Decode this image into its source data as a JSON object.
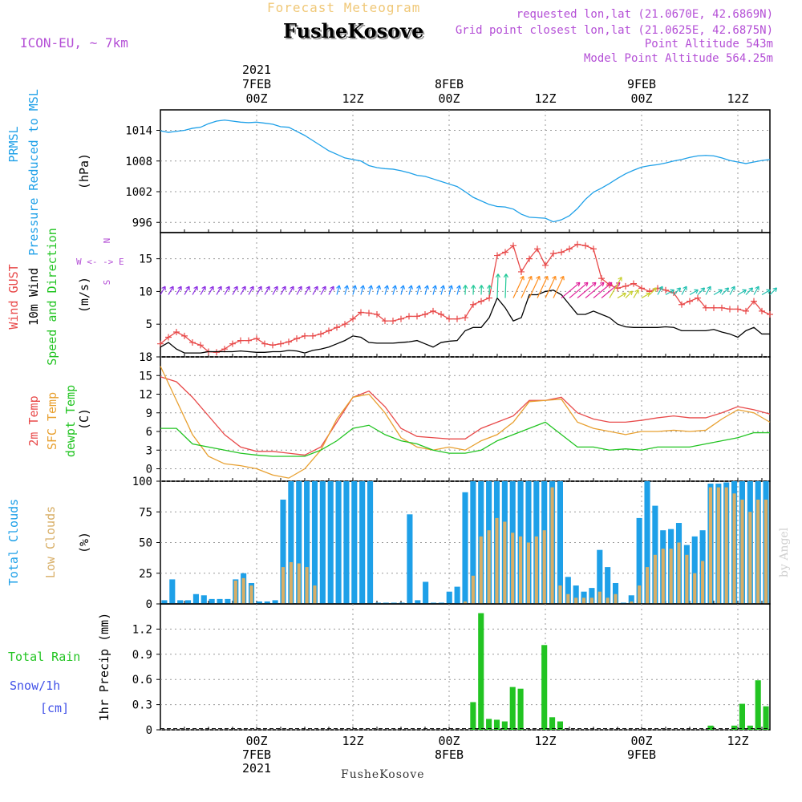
{
  "header": {
    "title": "Forecast Meteogram",
    "location": "FusheKosove",
    "model": "ICON-EU, ~ 7km",
    "requested": "requested lon,lat (21.0670E, 42.6869N)",
    "closest": "Grid point closest lon,lat (21.0625E, 42.6875N)",
    "point_alt": "Point Altitude 543m",
    "model_alt": "Model Point Altitude 564.25m",
    "credit": "by Angel",
    "footer": "FusheKosove"
  },
  "colors": {
    "pressure": "#1ea0e8",
    "gust": "#e84a4a",
    "wind": "#000000",
    "t2m": "#e84a4a",
    "sfc": "#e8a030",
    "dew": "#22c422",
    "total_cloud": "#1ea0e8",
    "low_cloud": "#d8ae66",
    "rain": "#22c422",
    "snow": "#4050e8"
  },
  "time_axis": {
    "top_labels": [
      {
        "t": 12,
        "lines": [
          "2021",
          "7FEB",
          "00Z"
        ]
      },
      {
        "t": 24,
        "lines": [
          "12Z"
        ]
      },
      {
        "t": 36,
        "lines": [
          "8FEB",
          "00Z"
        ]
      },
      {
        "t": 48,
        "lines": [
          "12Z"
        ]
      },
      {
        "t": 60,
        "lines": [
          "9FEB",
          "00Z"
        ]
      },
      {
        "t": 72,
        "lines": [
          "12Z"
        ]
      }
    ],
    "bottom_labels": [
      {
        "t": 12,
        "lines": [
          "00Z",
          "7FEB",
          "2021"
        ]
      },
      {
        "t": 24,
        "lines": [
          "12Z"
        ]
      },
      {
        "t": 36,
        "lines": [
          "00Z",
          "8FEB"
        ]
      },
      {
        "t": 48,
        "lines": [
          "12Z"
        ]
      },
      {
        "t": 60,
        "lines": [
          "00Z",
          "9FEB"
        ]
      },
      {
        "t": 72,
        "lines": [
          "12Z"
        ]
      }
    ]
  },
  "chart_data": [
    {
      "type": "line",
      "ylim": [
        994,
        1018
      ],
      "yticks": [
        "996",
        "1002",
        "1008",
        "1014"
      ],
      "unit": "(hPa)",
      "label_lines": [
        "PRMSL",
        "Pressure Reduced to MSL"
      ],
      "series": [
        {
          "name": "PRMSL",
          "x": [
            0,
            1,
            2,
            3,
            4,
            5,
            6,
            7,
            8,
            9,
            10,
            11,
            12,
            13,
            14,
            15,
            16,
            17,
            18,
            19,
            20,
            21,
            22,
            23,
            24,
            25,
            26,
            27,
            28,
            29,
            30,
            31,
            32,
            33,
            34,
            35,
            36,
            37,
            38,
            39,
            40,
            41,
            42,
            43,
            44,
            45,
            46,
            47,
            48,
            49,
            50,
            51,
            52,
            53,
            54,
            55,
            56,
            57,
            58,
            59,
            60,
            61,
            62,
            63,
            64,
            65,
            66,
            67,
            68,
            69,
            70,
            71,
            72,
            73,
            74,
            75,
            76
          ],
          "values": [
            1013.9,
            1013.6,
            1013.8,
            1014.0,
            1014.4,
            1014.6,
            1015.3,
            1015.8,
            1016.0,
            1015.8,
            1015.6,
            1015.5,
            1015.6,
            1015.4,
            1015.2,
            1014.7,
            1014.6,
            1013.8,
            1013.0,
            1012.0,
            1011.0,
            1010.0,
            1009.3,
            1008.6,
            1008.3,
            1008.0,
            1007.1,
            1006.7,
            1006.5,
            1006.4,
            1006.1,
            1005.7,
            1005.2,
            1005.0,
            1004.5,
            1004.0,
            1003.5,
            1003.0,
            1002.0,
            1000.9,
            1000.2,
            999.5,
            999.1,
            999.0,
            998.6,
            997.6,
            997.0,
            996.9,
            996.8,
            996.1,
            996.5,
            997.3,
            998.7,
            1000.5,
            1001.9,
            1002.7,
            1003.6,
            1004.6,
            1005.5,
            1006.2,
            1006.8,
            1007.1,
            1007.3,
            1007.6,
            1008.0,
            1008.3,
            1008.7,
            1009.0,
            1009.1,
            1009.0,
            1008.6,
            1008.1,
            1007.8,
            1007.5,
            1007.8,
            1008.1,
            1008.3
          ]
        }
      ]
    },
    {
      "type": "line",
      "ylim": [
        0,
        19
      ],
      "yticks": [
        "5",
        "10",
        "15"
      ],
      "unit": "(m/s)",
      "label_lines": [
        "Wind GUST",
        "10m Wind",
        "Speed and Direction"
      ],
      "compass": [
        "N",
        "W <- -> E",
        "S"
      ],
      "series": [
        {
          "name": "Wind GUST",
          "marker": "+",
          "x": [
            0,
            1,
            2,
            3,
            4,
            5,
            6,
            7,
            8,
            9,
            10,
            11,
            12,
            13,
            14,
            15,
            16,
            17,
            18,
            19,
            20,
            21,
            22,
            23,
            24,
            25,
            26,
            27,
            28,
            29,
            30,
            31,
            32,
            33,
            34,
            35,
            36,
            37,
            38,
            39,
            40,
            41,
            42,
            43,
            44,
            45,
            46,
            47,
            48,
            49,
            50,
            51,
            52,
            53,
            54,
            55,
            56,
            57,
            58,
            59,
            60,
            61,
            62,
            63,
            64,
            65,
            66,
            67,
            68,
            69,
            70,
            71,
            72,
            73,
            74,
            75,
            76
          ],
          "values": [
            2.0,
            3.0,
            3.8,
            3.2,
            2.2,
            1.8,
            0.8,
            0.7,
            1.2,
            2.0,
            2.5,
            2.5,
            2.8,
            2.0,
            1.8,
            2.0,
            2.3,
            2.8,
            3.2,
            3.2,
            3.5,
            4.0,
            4.5,
            5.0,
            5.8,
            6.8,
            6.7,
            6.5,
            5.5,
            5.5,
            5.8,
            6.2,
            6.2,
            6.5,
            7.0,
            6.5,
            5.8,
            5.8,
            6.0,
            8.0,
            8.5,
            9.0,
            15.5,
            16.0,
            17.0,
            13.0,
            15.0,
            16.5,
            14.0,
            15.8,
            16.0,
            16.5,
            17.2,
            17.0,
            16.5,
            12.0,
            11.0,
            10.5,
            10.8,
            11.2,
            10.5,
            10.0,
            10.5,
            10.2,
            9.8,
            8.0,
            8.5,
            9.0,
            7.5,
            7.5,
            7.5,
            7.3,
            7.3,
            7.0,
            8.5,
            7.0,
            6.5
          ]
        },
        {
          "name": "10m Wind",
          "x": [
            0,
            1,
            2,
            3,
            4,
            5,
            6,
            7,
            8,
            9,
            10,
            11,
            12,
            13,
            14,
            15,
            16,
            17,
            18,
            19,
            20,
            21,
            22,
            23,
            24,
            25,
            26,
            27,
            28,
            29,
            30,
            31,
            32,
            33,
            34,
            35,
            36,
            37,
            38,
            39,
            40,
            41,
            42,
            43,
            44,
            45,
            46,
            47,
            48,
            49,
            50,
            51,
            52,
            53,
            54,
            55,
            56,
            57,
            58,
            59,
            60,
            61,
            62,
            63,
            64,
            65,
            66,
            67,
            68,
            69,
            70,
            71,
            72,
            73,
            74,
            75,
            76
          ],
          "values": [
            1.5,
            2.2,
            1.2,
            0.6,
            0.6,
            0.6,
            0.8,
            0.8,
            0.8,
            0.8,
            0.9,
            0.8,
            0.7,
            0.7,
            0.8,
            0.8,
            1.0,
            0.9,
            0.6,
            1.0,
            1.2,
            1.5,
            2.0,
            2.5,
            3.2,
            3.0,
            2.2,
            2.1,
            2.1,
            2.1,
            2.2,
            2.3,
            2.5,
            2.0,
            1.5,
            2.2,
            2.4,
            2.5,
            4.0,
            4.5,
            4.5,
            6.0,
            9.0,
            7.5,
            5.5,
            6.0,
            9.5,
            9.5,
            10.0,
            10.2,
            9.5,
            8.0,
            6.5,
            6.5,
            7.0,
            6.5,
            6.0,
            5.0,
            4.6,
            4.5,
            4.5,
            4.5,
            4.5,
            4.6,
            4.5,
            4.0,
            4.0,
            4.0,
            4.0,
            4.2,
            3.8,
            3.5,
            3.0,
            4.0,
            4.5,
            3.5,
            3.5
          ]
        }
      ]
    },
    {
      "type": "line",
      "ylim": [
        -2,
        18
      ],
      "yticks": [
        "0",
        "3",
        "6",
        "9",
        "12",
        "15",
        "18"
      ],
      "unit": "(C)",
      "label_lines": [
        "2m Temp",
        "SFC Temp",
        "dewpt Temp"
      ],
      "series": [
        {
          "name": "2m Temp",
          "x": [
            0,
            2,
            4,
            6,
            8,
            10,
            12,
            14,
            16,
            18,
            20,
            22,
            24,
            26,
            28,
            30,
            32,
            34,
            36,
            38,
            40,
            42,
            44,
            46,
            48,
            50,
            52,
            54,
            56,
            58,
            60,
            62,
            64,
            66,
            68,
            70,
            72,
            74,
            76
          ],
          "values": [
            14.8,
            14.0,
            11.5,
            8.5,
            5.5,
            3.5,
            2.8,
            2.8,
            2.5,
            2.2,
            3.5,
            7.5,
            11.5,
            12.5,
            10.0,
            6.5,
            5.2,
            5.0,
            4.8,
            4.8,
            6.5,
            7.5,
            8.5,
            11.0,
            11.0,
            11.5,
            9.0,
            8.0,
            7.5,
            7.5,
            7.8,
            8.2,
            8.5,
            8.2,
            8.2,
            9.0,
            10.0,
            9.5,
            8.8
          ]
        },
        {
          "name": "SFC Temp",
          "x": [
            0,
            2,
            4,
            6,
            8,
            10,
            12,
            14,
            16,
            18,
            20,
            22,
            24,
            26,
            28,
            30,
            32,
            34,
            36,
            38,
            40,
            42,
            44,
            46,
            48,
            50,
            52,
            54,
            56,
            58,
            60,
            62,
            64,
            66,
            68,
            70,
            72,
            74,
            76
          ],
          "values": [
            16.5,
            11.0,
            5.5,
            2.0,
            0.8,
            0.5,
            0.0,
            -1.0,
            -1.5,
            0.0,
            3.0,
            8.0,
            11.5,
            12.0,
            9.0,
            5.0,
            3.5,
            3.0,
            3.5,
            3.0,
            4.5,
            5.5,
            7.5,
            10.8,
            11.0,
            11.2,
            7.5,
            6.5,
            6.0,
            5.5,
            6.0,
            6.0,
            6.2,
            6.0,
            6.2,
            8.0,
            9.5,
            9.0,
            7.5
          ]
        },
        {
          "name": "dewpt Temp",
          "x": [
            0,
            2,
            4,
            6,
            8,
            10,
            12,
            14,
            16,
            18,
            20,
            22,
            24,
            26,
            28,
            30,
            32,
            34,
            36,
            38,
            40,
            42,
            44,
            46,
            48,
            50,
            52,
            54,
            56,
            58,
            60,
            62,
            64,
            66,
            68,
            70,
            72,
            74,
            76
          ],
          "values": [
            6.5,
            6.5,
            4.0,
            3.5,
            3.0,
            2.5,
            2.2,
            2.0,
            2.0,
            2.0,
            3.0,
            4.5,
            6.5,
            7.0,
            5.5,
            4.5,
            4.0,
            3.0,
            2.5,
            2.5,
            3.0,
            4.5,
            5.5,
            6.5,
            7.5,
            5.5,
            3.5,
            3.5,
            3.0,
            3.2,
            3.0,
            3.5,
            3.5,
            3.5,
            4.0,
            4.5,
            5.0,
            5.8,
            5.8
          ]
        }
      ]
    },
    {
      "type": "bar",
      "ylim": [
        0,
        100
      ],
      "yticks": [
        "0",
        "25",
        "50",
        "75",
        "100"
      ],
      "unit": "(%)",
      "label_lines": [
        "Total Clouds",
        "Low Clouds"
      ],
      "series": [
        {
          "name": "Total Clouds",
          "values": [
            3,
            20,
            3,
            3,
            8,
            7,
            4,
            4,
            4,
            20,
            25,
            17,
            2,
            2,
            3,
            85,
            100,
            100,
            100,
            100,
            100,
            100,
            100,
            100,
            100,
            100,
            100,
            1,
            1,
            1,
            1,
            73,
            3,
            18,
            1,
            1,
            10,
            14,
            91,
            100,
            100,
            100,
            100,
            100,
            100,
            100,
            100,
            100,
            100,
            100,
            100,
            22,
            15,
            10,
            13,
            44,
            30,
            17,
            1,
            7,
            70,
            100,
            80,
            60,
            61,
            66,
            48,
            55,
            60,
            98,
            98,
            99,
            100,
            100,
            100,
            100,
            100
          ]
        },
        {
          "name": "Low Clouds",
          "values": [
            0,
            0,
            0,
            0,
            0,
            0,
            0,
            0,
            0,
            19,
            21,
            15,
            0,
            0,
            0,
            30,
            34,
            33,
            30,
            15,
            0,
            0,
            0,
            0,
            0,
            0,
            0,
            0,
            0,
            0,
            0,
            0,
            0,
            0,
            0,
            0,
            0,
            0,
            2,
            23,
            55,
            60,
            70,
            67,
            58,
            55,
            50,
            55,
            60,
            95,
            15,
            8,
            5,
            5,
            5,
            10,
            5,
            8,
            0,
            2,
            15,
            30,
            40,
            45,
            45,
            50,
            40,
            25,
            35,
            95,
            95,
            95,
            90,
            85,
            75,
            85,
            85
          ]
        }
      ]
    },
    {
      "type": "bar",
      "ylim": [
        0,
        1.5
      ],
      "yticks": [
        "0",
        "0.3",
        "0.6",
        "0.9",
        "1.2"
      ],
      "unit": "1hr Precip (mm)",
      "label_lines": [
        "Total  Rain",
        "Snow/1h",
        "[cm]"
      ],
      "series": [
        {
          "name": "Total Rain",
          "values": [
            0,
            0,
            0,
            0,
            0,
            0,
            0,
            0,
            0,
            0,
            0,
            0,
            0,
            0,
            0,
            0,
            0,
            0,
            0,
            0,
            0,
            0,
            0,
            0,
            0,
            0,
            0,
            0,
            0,
            0,
            0,
            0,
            0,
            0,
            0,
            0,
            0,
            0,
            0,
            0.33,
            1.39,
            0.13,
            0.12,
            0.1,
            0.51,
            0.49,
            0,
            0,
            1.01,
            0.15,
            0.1,
            0,
            0,
            0,
            0,
            0,
            0,
            0,
            0,
            0,
            0,
            0,
            0,
            0,
            0,
            0,
            0,
            0,
            0,
            0.05,
            0,
            0,
            0.05,
            0.31,
            0.05,
            0.59,
            0.28
          ]
        }
      ]
    }
  ]
}
